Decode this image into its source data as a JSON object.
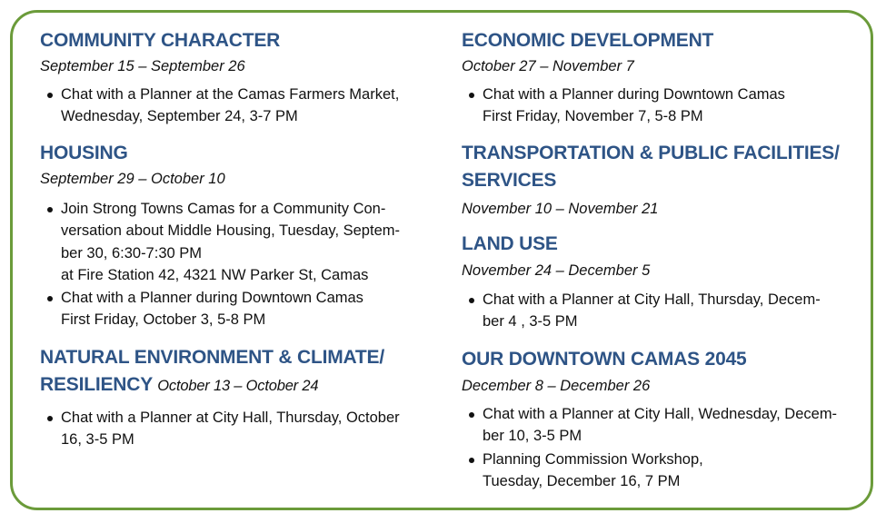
{
  "accent_color": "#2e5486",
  "border_color": "#6b9b3a",
  "left": {
    "community": {
      "heading": "COMMUNITY CHARACTER",
      "dates": "September 15 – September 26",
      "b1": [
        "Chat with a Planner at the Camas Farmers Market,",
        "Wednesday, September 24, 3-7 PM"
      ]
    },
    "housing": {
      "heading": "HOUSING",
      "dates": "September 29 – October 10",
      "b1": [
        "Join Strong Towns Camas for a Community Con-",
        "versation about Middle Housing, Tuesday, Septem-",
        "ber 30, 6:30-7:30 PM",
        "at Fire Station 42, 4321 NW Parker St, Camas"
      ],
      "b2": [
        "Chat with a Planner during Downtown Camas",
        "First Friday, October 3, 5-8 PM"
      ]
    },
    "natural": {
      "heading1": "NATURAL ENVIRONMENT & CLIMATE/",
      "heading2": "RESILIENCY",
      "dates": "October 13 – October 24",
      "b1": [
        "Chat with a Planner at City Hall, Thursday, October",
        "16, 3-5 PM"
      ]
    }
  },
  "right": {
    "economic": {
      "heading": "ECONOMIC DEVELOPMENT",
      "dates": "October 27 – November 7",
      "b1": [
        "Chat with a Planner during Downtown Camas",
        "First Friday, November 7, 5-8 PM"
      ]
    },
    "transport": {
      "heading1": "TRANSPORTATION & PUBLIC FACILITIES/",
      "heading2": "SERVICES",
      "dates": "November 10 – November 21"
    },
    "landuse": {
      "heading": "LAND USE",
      "dates": "November 24 – December 5",
      "b1": [
        "Chat with a Planner at City Hall, Thursday, Decem-",
        "ber 4 , 3-5 PM"
      ]
    },
    "downtown": {
      "heading": "OUR DOWNTOWN CAMAS 2045",
      "dates": "December 8 – December 26",
      "b1": [
        "Chat with a Planner at City Hall, Wednesday, Decem-",
        "ber 10, 3-5 PM"
      ],
      "b2": [
        "Planning Commission Workshop,",
        "Tuesday, December 16,  7 PM"
      ]
    }
  }
}
